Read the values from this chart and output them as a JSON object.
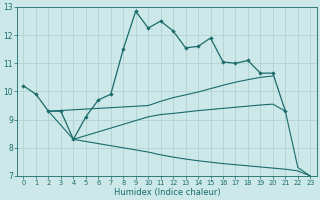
{
  "title": "",
  "xlabel": "Humidex (Indice chaleur)",
  "xlim": [
    -0.5,
    23.5
  ],
  "ylim": [
    7,
    13
  ],
  "xticks": [
    0,
    1,
    2,
    3,
    4,
    5,
    6,
    7,
    8,
    9,
    10,
    11,
    12,
    13,
    14,
    15,
    16,
    17,
    18,
    19,
    20,
    21,
    22,
    23
  ],
  "yticks": [
    7,
    8,
    9,
    10,
    11,
    12,
    13
  ],
  "bg_color": "#cde8e8",
  "line_color": "#1a6b6b",
  "grid_color": "#aecece",
  "main_x": [
    0,
    1,
    2,
    3,
    4,
    5,
    6,
    7,
    8,
    9,
    10,
    11,
    12,
    13,
    14,
    15,
    16,
    17,
    18,
    19,
    20,
    21
  ],
  "main_y": [
    10.2,
    9.9,
    9.3,
    9.3,
    8.3,
    9.1,
    9.7,
    9.9,
    11.5,
    12.85,
    12.25,
    12.5,
    12.15,
    11.55,
    11.6,
    11.9,
    11.05,
    11.0,
    11.1,
    10.65,
    10.65,
    9.3
  ],
  "line2_x": [
    2,
    10,
    11,
    12,
    13,
    14,
    15,
    16,
    17,
    18,
    19,
    20
  ],
  "line2_y": [
    9.3,
    9.5,
    9.65,
    9.78,
    9.88,
    9.98,
    10.1,
    10.22,
    10.33,
    10.42,
    10.5,
    10.55
  ],
  "line3_x": [
    2,
    4,
    10,
    11,
    12,
    13,
    14,
    15,
    16,
    17,
    18,
    19,
    20,
    21,
    22,
    23
  ],
  "line3_y": [
    9.3,
    8.3,
    9.1,
    9.18,
    9.22,
    9.27,
    9.32,
    9.36,
    9.4,
    9.44,
    9.48,
    9.52,
    9.55,
    9.3,
    7.3,
    7.0
  ],
  "line4_x": [
    4,
    10,
    11,
    12,
    13,
    14,
    15,
    16,
    17,
    18,
    19,
    20,
    21,
    22,
    23
  ],
  "line4_y": [
    8.3,
    7.85,
    7.75,
    7.67,
    7.6,
    7.54,
    7.49,
    7.44,
    7.4,
    7.36,
    7.32,
    7.28,
    7.24,
    7.18,
    7.0
  ]
}
